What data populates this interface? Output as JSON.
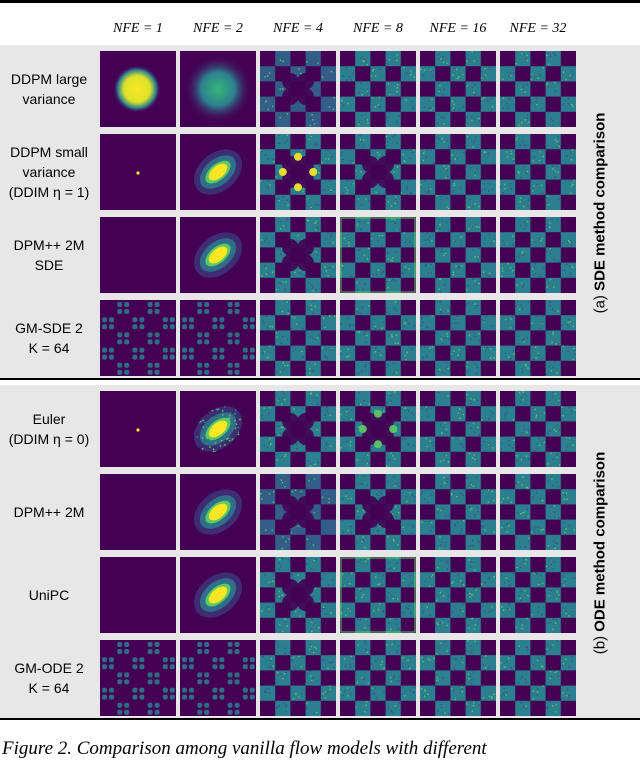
{
  "figure": {
    "columns": [
      "NFE = 1",
      "NFE = 2",
      "NFE = 4",
      "NFE = 8",
      "NFE = 16",
      "NFE = 32"
    ],
    "panels": [
      {
        "label_prefix": "(a) ",
        "label_bold": "SDE method comparison",
        "rows": [
          {
            "label": "DDPM large\nvariance",
            "images": [
              "blob-large",
              "blob-faint",
              "checker-blurred",
              "checker",
              "checker",
              "checker"
            ]
          },
          {
            "label": "DDPM small\nvariance\n(DDIM η = 1)",
            "images": [
              "dot",
              "diagonal-blob",
              "checker-hot",
              "checker-medium",
              "checker",
              "checker"
            ]
          },
          {
            "label": "DPM++ 2M\nSDE",
            "images": [
              "empty",
              "diagonal-blob",
              "checker-medium",
              "checker-bright-edge",
              "checker",
              "checker"
            ]
          },
          {
            "label": "GM-SDE 2\nK = 64",
            "images": [
              "checker-clustered",
              "checker-clustered",
              "checker",
              "checker",
              "checker",
              "checker"
            ]
          }
        ]
      },
      {
        "label_prefix": "(b) ",
        "label_bold": "ODE method comparison",
        "rows": [
          {
            "label": "Euler\n(DDIM η = 0)",
            "images": [
              "dot",
              "diagonal-blob-noisy",
              "checker-medium",
              "checker-medium-bright",
              "checker",
              "checker"
            ]
          },
          {
            "label": "DPM++ 2M",
            "images": [
              "empty",
              "diagonal-blob",
              "checker-blurred",
              "checker-medium",
              "checker",
              "checker"
            ]
          },
          {
            "label": "UniPC",
            "images": [
              "empty",
              "diagonal-blob",
              "checker-medium",
              "checker-bright-edge",
              "checker",
              "checker"
            ]
          },
          {
            "label": "GM-ODE 2\nK = 64",
            "images": [
              "checker-clustered",
              "checker-clustered",
              "checker",
              "checker",
              "checker",
              "checker"
            ]
          }
        ]
      }
    ],
    "caption": "Figure 2. Comparison among vanilla flow models with different",
    "colors": {
      "background": "#440154",
      "teal": "#2c7f8e",
      "blue": "#3b528b",
      "green": "#5ec962",
      "yellow": "#fde725",
      "panel": "#e7e7e7"
    }
  }
}
